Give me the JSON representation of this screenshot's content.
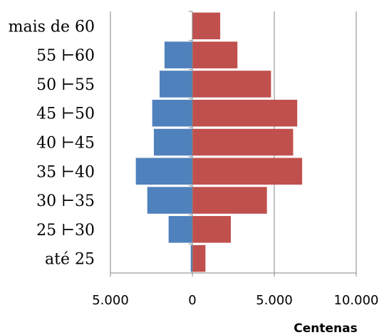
{
  "chart_data": {
    "type": "bar",
    "orientation": "horizontal",
    "layout": "population-pyramid",
    "categories": [
      "mais de 60",
      "55 ⊢60",
      "50 ⊢55",
      "45 ⊢50",
      "40 ⊢45",
      "35 ⊢40",
      "30 ⊢35",
      "25 ⊢30",
      "até 25"
    ],
    "series": [
      {
        "color": "#4F81BD",
        "direction": "left",
        "values": [
          0,
          1700,
          2000,
          2450,
          2350,
          3450,
          2750,
          1450,
          100
        ]
      },
      {
        "color": "#C0504D",
        "direction": "right",
        "values": [
          1700,
          2750,
          4800,
          6400,
          6150,
          6700,
          4550,
          2350,
          800
        ]
      }
    ],
    "xlabel": "Centenas",
    "ylabel": "",
    "xlim": [
      -5000,
      10000
    ],
    "x_ticks": [
      -5000,
      0,
      5000,
      10000
    ],
    "x_tick_labels": [
      "5.000",
      "0",
      "5.000",
      "10.000"
    ],
    "grid": "vertical-major"
  }
}
